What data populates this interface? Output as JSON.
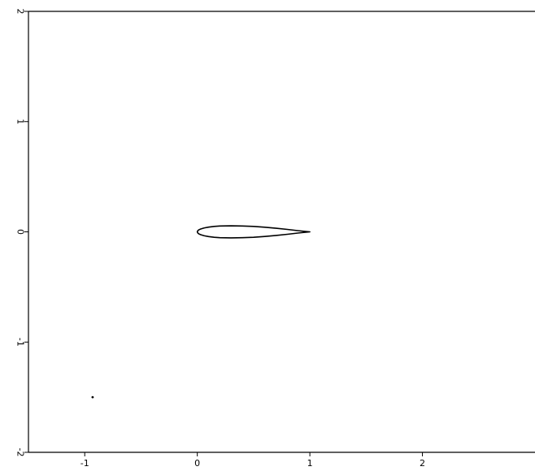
{
  "chart_data": {
    "type": "line",
    "title": "",
    "xlabel": "",
    "ylabel": "",
    "xlim": [
      -1.5,
      3.0
    ],
    "ylim": [
      -2,
      2
    ],
    "x_ticks": [
      "-1",
      "0",
      "1",
      "2"
    ],
    "y_ticks": [
      "-2",
      "-1",
      "0",
      "1",
      "2"
    ],
    "y_tick_labels_rotated": true,
    "grid": false,
    "legend": "none",
    "series": [
      {
        "kind": "closed-curve",
        "x": [
          1.0,
          0.9,
          0.8,
          0.7,
          0.6,
          0.5,
          0.4,
          0.3,
          0.2,
          0.15,
          0.1,
          0.06,
          0.03,
          0.015,
          0.005,
          0.0,
          0.005,
          0.015,
          0.03,
          0.06,
          0.1,
          0.15,
          0.2,
          0.3,
          0.4,
          0.5,
          0.6,
          0.7,
          0.8,
          0.9,
          1.0
        ],
        "y": [
          0.0,
          0.01,
          0.022,
          0.033,
          0.042,
          0.049,
          0.053,
          0.055,
          0.053,
          0.049,
          0.043,
          0.035,
          0.026,
          0.019,
          0.011,
          0.0,
          -0.011,
          -0.019,
          -0.026,
          -0.035,
          -0.043,
          -0.049,
          -0.053,
          -0.055,
          -0.053,
          -0.049,
          -0.042,
          -0.033,
          -0.022,
          -0.01,
          0.0
        ]
      },
      {
        "kind": "point",
        "x": [
          -0.93
        ],
        "y": [
          -1.5
        ]
      }
    ],
    "colors": {
      "axes": "#000000",
      "curve": "#000000",
      "background": "#ffffff"
    }
  }
}
